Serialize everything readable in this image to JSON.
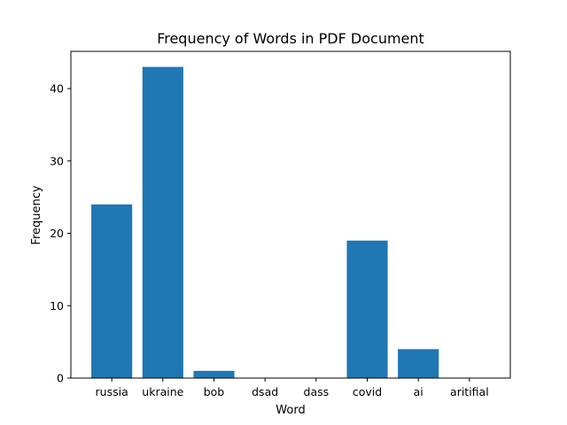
{
  "chart_data": {
    "type": "bar",
    "title": "Frequency of Words in PDF Document",
    "xlabel": "Word",
    "ylabel": "Frequency",
    "categories": [
      "russia",
      "ukraine",
      "bob",
      "dsad",
      "dass",
      "covid",
      "ai",
      "aritifial"
    ],
    "values": [
      24,
      43,
      1,
      0,
      0,
      19,
      4,
      0
    ],
    "ylim": [
      0,
      45.15
    ],
    "yticks": [
      0,
      10,
      20,
      30,
      40
    ],
    "grid": false,
    "bar_color": "#1f77b4"
  }
}
